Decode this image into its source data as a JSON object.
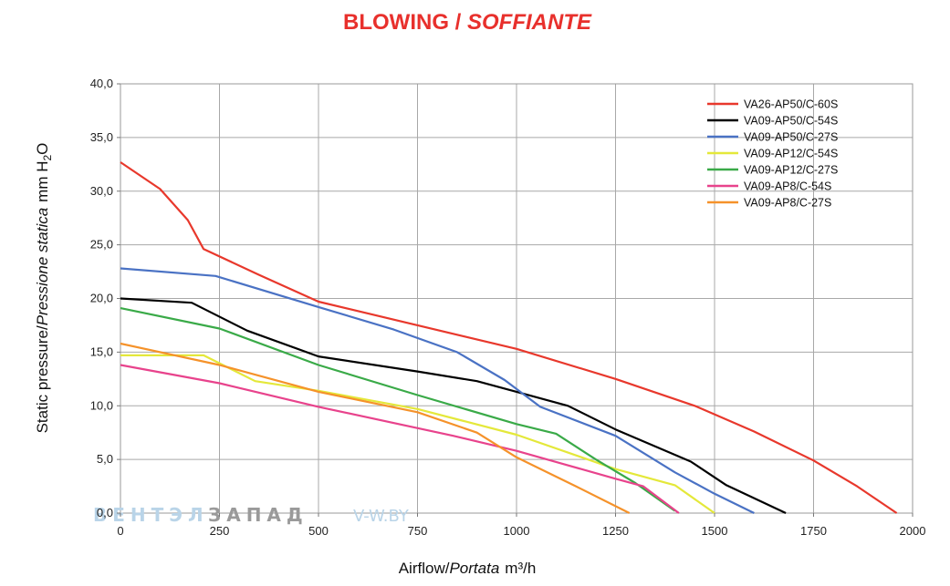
{
  "header": {
    "title_en": "BLOWING",
    "title_sep": " / ",
    "title_it": "SOFFIANTE"
  },
  "watermark": {
    "part1": "ВЕНТЭЛ",
    "part2": "ЗАПАД",
    "site": "V-W.BY"
  },
  "chart_data": {
    "type": "line",
    "grid": true,
    "legend_position": "top-right",
    "xlim": [
      0,
      2000
    ],
    "ylim": [
      0,
      40
    ],
    "xticks": [
      0,
      250,
      500,
      750,
      1000,
      1250,
      1500,
      1750,
      2000
    ],
    "xtick_labels": [
      "0",
      "250",
      "500",
      "750",
      "1000",
      "1250",
      "1500",
      "1750",
      "2000"
    ],
    "yticks": [
      0,
      5,
      10,
      15,
      20,
      25,
      30,
      35,
      40
    ],
    "ytick_labels": [
      "0,0",
      "5,0",
      "10,0",
      "15,0",
      "20,0",
      "25,0",
      "30,0",
      "35,0",
      "40,0"
    ],
    "xlabel": {
      "main": "Airflow",
      "sep": "/",
      "it": "Portata",
      "unit": "m³/h"
    },
    "ylabel": {
      "main": "Static pressure",
      "sep": "/",
      "it": "Pressione statica",
      "unit_main": "mm H",
      "unit_sub": "2",
      "unit_end": "O"
    },
    "series": [
      {
        "name": "VA26-AP50/C-60S",
        "color": "#e8382c",
        "points": [
          [
            0,
            32.7
          ],
          [
            100,
            30.2
          ],
          [
            170,
            27.3
          ],
          [
            210,
            24.6
          ],
          [
            350,
            22.2
          ],
          [
            500,
            19.7
          ],
          [
            750,
            17.5
          ],
          [
            1000,
            15.3
          ],
          [
            1250,
            12.5
          ],
          [
            1450,
            10.0
          ],
          [
            1600,
            7.6
          ],
          [
            1750,
            4.9
          ],
          [
            1860,
            2.5
          ],
          [
            1960,
            0
          ]
        ]
      },
      {
        "name": "VA09-AP50/C-54S",
        "color": "#000000",
        "points": [
          [
            0,
            20.0
          ],
          [
            180,
            19.6
          ],
          [
            320,
            17.0
          ],
          [
            500,
            14.6
          ],
          [
            750,
            13.2
          ],
          [
            900,
            12.3
          ],
          [
            1000,
            11.3
          ],
          [
            1130,
            10.0
          ],
          [
            1250,
            7.8
          ],
          [
            1440,
            4.8
          ],
          [
            1530,
            2.6
          ],
          [
            1680,
            0
          ]
        ]
      },
      {
        "name": "VA09-AP50/C-27S",
        "color": "#4a72c4",
        "points": [
          [
            0,
            22.8
          ],
          [
            240,
            22.1
          ],
          [
            500,
            19.2
          ],
          [
            690,
            17.1
          ],
          [
            850,
            15.0
          ],
          [
            970,
            12.4
          ],
          [
            1060,
            9.9
          ],
          [
            1250,
            7.2
          ],
          [
            1400,
            3.8
          ],
          [
            1500,
            1.8
          ],
          [
            1600,
            0
          ]
        ]
      },
      {
        "name": "VA09-AP12/C-54S",
        "color": "#e4e83a",
        "points": [
          [
            0,
            14.7
          ],
          [
            210,
            14.7
          ],
          [
            340,
            12.3
          ],
          [
            500,
            11.4
          ],
          [
            750,
            9.7
          ],
          [
            1000,
            7.3
          ],
          [
            1250,
            4.1
          ],
          [
            1400,
            2.6
          ],
          [
            1500,
            0
          ]
        ]
      },
      {
        "name": "VA09-AP12/C-27S",
        "color": "#3aaa48",
        "points": [
          [
            0,
            19.1
          ],
          [
            250,
            17.2
          ],
          [
            500,
            13.8
          ],
          [
            750,
            11.0
          ],
          [
            1000,
            8.3
          ],
          [
            1100,
            7.4
          ],
          [
            1200,
            5.0
          ],
          [
            1300,
            2.8
          ],
          [
            1400,
            0.2
          ]
        ]
      },
      {
        "name": "VA09-AP8/C-54S",
        "color": "#e8438c",
        "points": [
          [
            0,
            13.8
          ],
          [
            250,
            12.1
          ],
          [
            500,
            9.9
          ],
          [
            840,
            7.2
          ],
          [
            1000,
            5.8
          ],
          [
            1250,
            3.2
          ],
          [
            1320,
            2.5
          ],
          [
            1410,
            0
          ]
        ]
      },
      {
        "name": "VA09-AP8/C-27S",
        "color": "#f5922a",
        "points": [
          [
            0,
            15.8
          ],
          [
            250,
            13.8
          ],
          [
            500,
            11.3
          ],
          [
            750,
            9.4
          ],
          [
            900,
            7.5
          ],
          [
            1000,
            5.2
          ],
          [
            1150,
            2.5
          ],
          [
            1285,
            0
          ]
        ]
      }
    ]
  }
}
